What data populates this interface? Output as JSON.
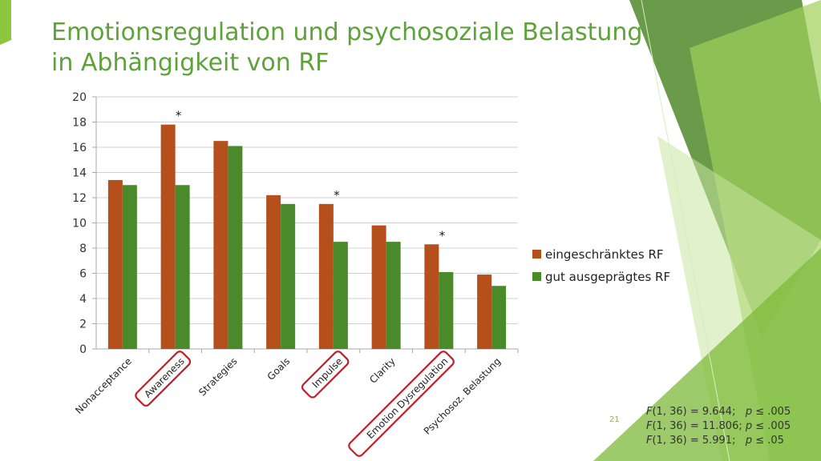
{
  "slide": {
    "title_line1": "Emotionsregulation und psychosoziale Belastung",
    "title_line2": "in Abhängigkeit von RF",
    "page_number": "21"
  },
  "stats": [
    {
      "f": "F",
      "text": "(1, 36) = 9.644;   ",
      "p": "p",
      "tail": " ≤ .005"
    },
    {
      "f": "F",
      "text": "(1, 36) = 11.806; ",
      "p": "p",
      "tail": " ≤ .005"
    },
    {
      "f": "F",
      "text": "(1, 36) = 5.991;   ",
      "p": "p",
      "tail": " ≤ .05"
    }
  ],
  "colors": {
    "title": "#5ea23a",
    "series_restricted": "#b5501c",
    "series_good": "#4a8a2a",
    "highlight_box": "#c0202a",
    "accent_green": "#8dc63f"
  },
  "chart_data": {
    "type": "bar",
    "categories": [
      "Nonacceptance",
      "Awareness",
      "Strategies",
      "Goals",
      "Impulse",
      "Clarity",
      "Emotion Dysregulation",
      "Psychosoz. Belastung"
    ],
    "series": [
      {
        "name": "eingeschränktes RF",
        "values": [
          13.4,
          17.8,
          16.5,
          12.2,
          11.5,
          9.8,
          8.3,
          5.9
        ]
      },
      {
        "name": "gut ausgeprägtes RF",
        "values": [
          13.0,
          13.0,
          16.1,
          11.5,
          8.5,
          8.5,
          6.1,
          5.0
        ]
      }
    ],
    "ylim": [
      0,
      20
    ],
    "yticks": [
      "0",
      "2",
      "4",
      "6",
      "8",
      "10",
      "12",
      "14",
      "16",
      "18",
      "20"
    ],
    "grid": true,
    "legend_position": "right",
    "significance_marker": "*",
    "significant_categories": [
      "Awareness",
      "Impulse",
      "Emotion Dysregulation"
    ],
    "highlighted_categories": [
      "Awareness",
      "Impulse",
      "Emotion Dysregulation"
    ]
  }
}
